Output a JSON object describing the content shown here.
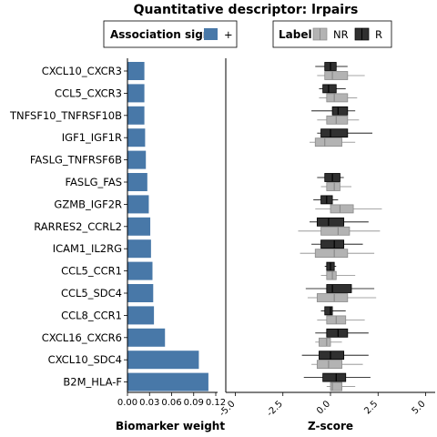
{
  "title": "Quantitative descriptor: lrpairs",
  "legend_sign": {
    "title": "Association sign",
    "entries": [
      {
        "label": "+",
        "color": "#4878a8"
      }
    ]
  },
  "legend_label": {
    "title": "Label",
    "entries": [
      {
        "label": "NR",
        "color": "#b3b3b3"
      },
      {
        "label": "R",
        "color": "#303030"
      }
    ]
  },
  "chart_data": [
    {
      "type": "bar",
      "orientation": "horizontal",
      "xlabel": "Biomarker weight",
      "xlim": [
        0,
        0.12
      ],
      "xticks": [
        "0.00",
        "0.03",
        "0.06",
        "0.09",
        "0.12"
      ],
      "categories": [
        "CXCL10_CXCR3",
        "CCL5_CXCR3",
        "TNFSF10_TNFRSF10B",
        "IGF1_IGF1R",
        "FASLG_TNFRSF6B",
        "FASLG_FAS",
        "GZMB_IGF2R",
        "RARRES2_CCRL2",
        "ICAM1_IL2RG",
        "CCL5_CCR1",
        "CCL5_SDC4",
        "CCL8_CCR1",
        "CXCL16_CXCR6",
        "CXCL10_SDC4",
        "B2M_HLA-F"
      ],
      "series": [
        {
          "name": "+",
          "color": "#4878a8",
          "values": [
            0.023,
            0.023,
            0.023,
            0.024,
            0.025,
            0.027,
            0.029,
            0.031,
            0.032,
            0.034,
            0.035,
            0.036,
            0.051,
            0.097,
            0.11
          ]
        }
      ]
    },
    {
      "type": "box",
      "orientation": "horizontal",
      "xlabel": "Z-score",
      "xlim": [
        -5.5,
        5.5
      ],
      "xticks": [
        "-5.0",
        "-2.5",
        "0.0",
        "2.5",
        "5.0"
      ],
      "tick_values": [
        -5,
        -2.5,
        0,
        2.5,
        5
      ],
      "categories": [
        "CXCL10_CXCR3",
        "CCL5_CXCR3",
        "TNFSF10_TNFRSF10B",
        "IGF1_IGF1R",
        "FASLG_TNFRSF6B",
        "FASLG_FAS",
        "GZMB_IGF2R",
        "RARRES2_CCRL2",
        "ICAM1_IL2RG",
        "CCL5_CCR1",
        "CCL5_SDC4",
        "CCL8_CCR1",
        "CXCL16_CXCR6",
        "CXCL10_SDC4",
        "B2M_HLA-F"
      ],
      "series": [
        {
          "name": "NR",
          "color": "#b3b3b3",
          "boxes": [
            {
              "min": -0.7,
              "q1": -0.3,
              "median": 0.1,
              "q3": 0.9,
              "max": 1.8
            },
            {
              "min": -0.6,
              "q1": -0.2,
              "median": 0.2,
              "q3": 0.9,
              "max": 1.4
            },
            {
              "min": -0.7,
              "q1": -0.2,
              "median": 0.3,
              "q3": 0.9,
              "max": 1.5
            },
            {
              "min": -1.1,
              "q1": -0.8,
              "median": -0.3,
              "q3": 0.6,
              "max": 1.3
            },
            null,
            {
              "min": -0.5,
              "q1": -0.2,
              "median": 0.2,
              "q3": 0.5,
              "max": 1.1
            },
            {
              "min": -0.8,
              "q1": 0.0,
              "median": 0.5,
              "q3": 1.2,
              "max": 2.7
            },
            {
              "min": -1.7,
              "q1": -0.5,
              "median": 0.4,
              "q3": 1.0,
              "max": 2.6
            },
            {
              "min": -1.6,
              "q1": -0.8,
              "median": 0.2,
              "q3": 0.9,
              "max": 2.3
            },
            {
              "min": -0.5,
              "q1": -0.2,
              "median": 0.1,
              "q3": 0.3,
              "max": 1.3
            },
            {
              "min": -1.2,
              "q1": -0.7,
              "median": 0.2,
              "q3": 0.9,
              "max": 2.4
            },
            {
              "min": -0.7,
              "q1": -0.2,
              "median": 0.3,
              "q3": 0.8,
              "max": 1.8
            },
            {
              "min": -0.8,
              "q1": -0.6,
              "median": -0.2,
              "q3": 0.0,
              "max": 0.6
            },
            {
              "min": -1.0,
              "q1": -0.7,
              "median": -0.1,
              "q3": 0.6,
              "max": 1.7
            },
            {
              "min": -0.2,
              "q1": 0.0,
              "median": 0.1,
              "q3": 0.6,
              "max": 1.3
            }
          ]
        },
        {
          "name": "R",
          "color": "#303030",
          "boxes": [
            {
              "min": -0.8,
              "q1": -0.3,
              "median": 0.0,
              "q3": 0.3,
              "max": 0.9
            },
            {
              "min": -0.6,
              "q1": -0.4,
              "median": -0.1,
              "q3": 0.3,
              "max": 0.8
            },
            {
              "min": -1.0,
              "q1": 0.1,
              "median": 0.4,
              "q3": 0.9,
              "max": 1.3
            },
            {
              "min": -0.7,
              "q1": -0.5,
              "median": 0.0,
              "q3": 0.9,
              "max": 2.2
            },
            null,
            {
              "min": -0.7,
              "q1": -0.3,
              "median": 0.1,
              "q3": 0.5,
              "max": 0.7
            },
            {
              "min": -0.9,
              "q1": -0.5,
              "median": -0.2,
              "q3": 0.1,
              "max": 0.4
            },
            {
              "min": -1.1,
              "q1": -0.7,
              "median": -0.1,
              "q3": 0.7,
              "max": 2.0
            },
            {
              "min": -1.0,
              "q1": -0.5,
              "median": 0.2,
              "q3": 0.7,
              "max": 1.7
            },
            {
              "min": -0.3,
              "q1": -0.2,
              "median": 0.0,
              "q3": 0.2,
              "max": 0.3
            },
            {
              "min": -1.3,
              "q1": -0.2,
              "median": 0.1,
              "q3": 1.1,
              "max": 2.3
            },
            {
              "min": -0.5,
              "q1": -0.3,
              "median": 0.0,
              "q3": 0.1,
              "max": 0.8
            },
            {
              "min": -0.8,
              "q1": -0.2,
              "median": 0.4,
              "q3": 0.9,
              "max": 2.0
            },
            {
              "min": -1.5,
              "q1": -0.6,
              "median": 0.0,
              "q3": 0.7,
              "max": 2.0
            },
            {
              "min": -1.4,
              "q1": -0.4,
              "median": 0.3,
              "q3": 0.8,
              "max": 2.1
            }
          ]
        }
      ]
    }
  ]
}
